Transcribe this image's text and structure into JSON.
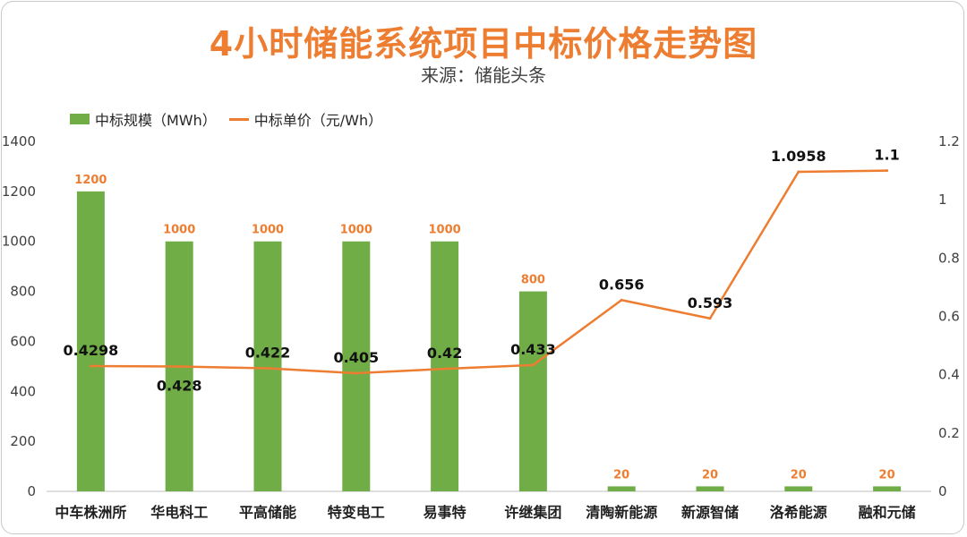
{
  "header": {
    "title": "4小时储能系统项目中标价格走势图",
    "source": "来源：储能头条"
  },
  "legend": {
    "bar_label": "中标规模（MWh）",
    "line_label": "中标单价（元/Wh）"
  },
  "colors": {
    "bar": "#70ad47",
    "line": "#ed7d31",
    "title": "#ed7d31"
  },
  "chart_data": {
    "type": "bar",
    "title": "4小时储能系统项目中标价格走势图",
    "subtitle": "来源：储能头条",
    "categories": [
      "中车株洲所",
      "华电科工",
      "平高储能",
      "特变电工",
      "易事特",
      "许继集团",
      "清陶新能源",
      "新源智储",
      "洛希能源",
      "融和元储"
    ],
    "series": [
      {
        "name": "中标规模（MWh）",
        "type": "bar",
        "axis": "left",
        "values": [
          1200,
          1000,
          1000,
          1000,
          1000,
          800,
          20,
          20,
          20,
          20
        ],
        "labels": [
          "1200",
          "1000",
          "1000",
          "1000",
          "1000",
          "800",
          "20",
          "20",
          "20",
          "20"
        ]
      },
      {
        "name": "中标单价（元/Wh）",
        "type": "line",
        "axis": "right",
        "values": [
          0.4298,
          0.428,
          0.422,
          0.405,
          0.42,
          0.433,
          0.656,
          0.593,
          1.0958,
          1.1
        ],
        "labels": [
          "0.4298",
          "0.428",
          "0.422",
          "0.405",
          "0.42",
          "0.433",
          "0.656",
          "0.593",
          "1.0958",
          "1.1"
        ]
      }
    ],
    "y_left": {
      "min": 0,
      "max": 1400,
      "ticks": [
        0,
        200,
        400,
        600,
        800,
        1000,
        1200,
        1400
      ],
      "tick_labels": [
        "0",
        "200",
        "400",
        "600",
        "800",
        "1000",
        "1200",
        "1400"
      ]
    },
    "y_right": {
      "min": 0,
      "max": 1.2,
      "ticks": [
        0,
        0.2,
        0.4,
        0.6,
        0.8,
        1,
        1.2
      ],
      "tick_labels": [
        "0",
        "0.2",
        "0.4",
        "0.6",
        "0.8",
        "1",
        "1.2"
      ]
    },
    "grid": false,
    "legend_position": "top-left"
  }
}
